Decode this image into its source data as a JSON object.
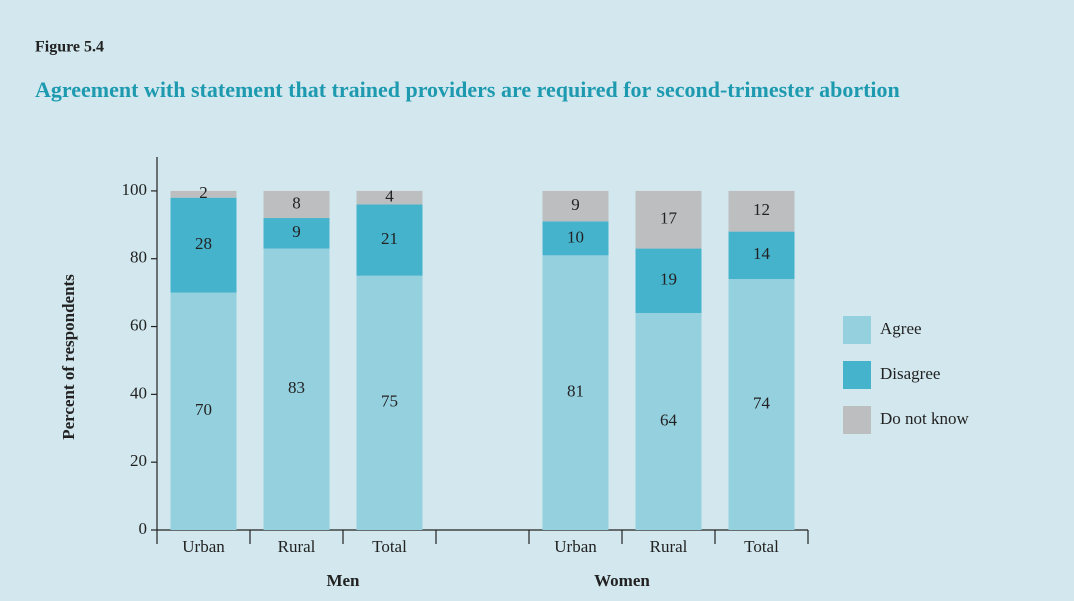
{
  "figure_label": "Figure 5.4",
  "chart_data": {
    "type": "stacked_bar",
    "title": "Agreement with statement that trained providers are required for second-trimester abortion",
    "y_label": "Percent of respondents",
    "categories": [
      "Urban",
      "Rural",
      "Total",
      null,
      "Urban",
      "Rural",
      "Total"
    ],
    "group_labels": [
      "Men",
      "Women"
    ],
    "series": [
      {
        "name": "Agree",
        "color": "#95d0df",
        "values": [
          70,
          83,
          75,
          null,
          81,
          64,
          74
        ]
      },
      {
        "name": "Disagree",
        "color": "#45b3cc",
        "values": [
          28,
          9,
          21,
          null,
          10,
          19,
          14
        ]
      },
      {
        "name": "Do not know",
        "color": "#bcbec0",
        "values": [
          2,
          8,
          4,
          null,
          9,
          17,
          12
        ]
      }
    ],
    "ylim": [
      0,
      110
    ],
    "yticks": [
      0,
      20,
      40,
      60,
      80,
      100
    ],
    "legend": "right"
  }
}
